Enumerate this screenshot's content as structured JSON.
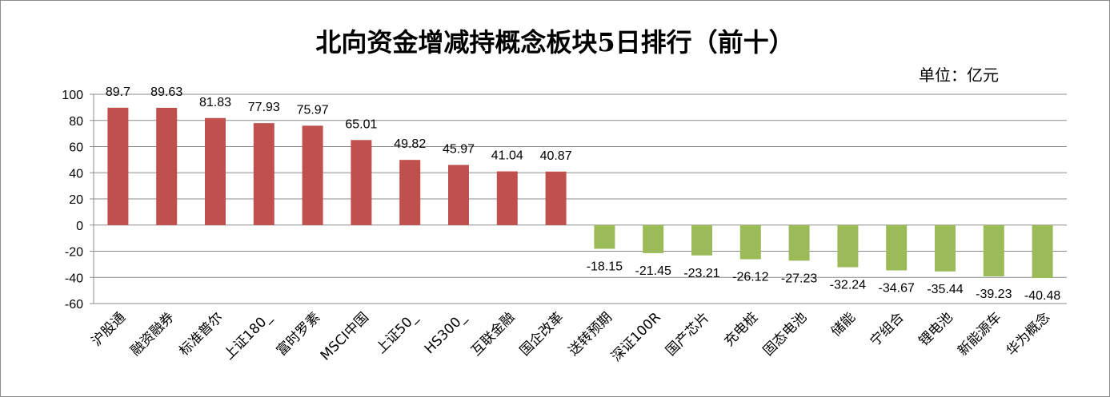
{
  "title": "北向资金增减持概念板块5日排行（前十）",
  "unit_label": "单位：亿元",
  "chart_data": {
    "type": "bar",
    "title": "北向资金增减持概念板块5日排行（前十）",
    "unit": "单位：亿元",
    "categories": [
      "沪股通",
      "融资融券",
      "标准普尔",
      "上证180_",
      "富时罗素",
      "MSCI中国",
      "上证50_",
      "HS300_",
      "互联金融",
      "国企改革",
      "送转预期",
      "深证100R",
      "国产芯片",
      "充电桩",
      "固态电池",
      "储能",
      "宁组合",
      "锂电池",
      "新能源车",
      "华为概念"
    ],
    "values": [
      89.7,
      89.63,
      81.83,
      77.93,
      75.97,
      65.01,
      49.82,
      45.97,
      41.04,
      40.87,
      -18.15,
      -21.45,
      -23.21,
      -26.12,
      -27.23,
      -32.24,
      -34.67,
      -35.44,
      -39.23,
      -40.48
    ],
    "value_labels": [
      "89.7",
      "89.63",
      "81.83",
      "77.93",
      "75.97",
      "65.01",
      "49.82",
      "45.97",
      "41.04",
      "40.87",
      "-18.15",
      "-21.45",
      "-23.21",
      "-26.12",
      "-27.23",
      "-32.24",
      "-34.67",
      "-35.44",
      "-39.23",
      "-40.48"
    ],
    "ylim": [
      -60,
      100
    ],
    "yticks": [
      100,
      80,
      60,
      40,
      20,
      0,
      -20,
      -40,
      -60
    ],
    "ytick_labels": [
      "100",
      "80",
      "60",
      "40",
      "20",
      "0",
      "-20",
      "-40",
      "-60"
    ],
    "grid": true,
    "legend": "none",
    "colors": {
      "positive": "#c0504d",
      "negative": "#9bbb59",
      "grid": "#8c8c8c"
    }
  }
}
